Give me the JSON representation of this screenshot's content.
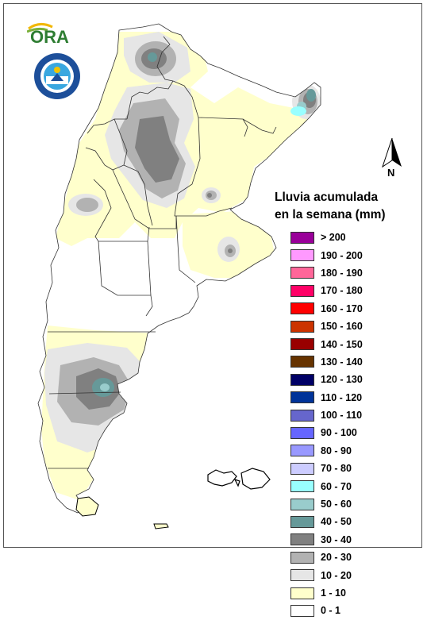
{
  "legend": {
    "title_line1": "Lluvia acumulada",
    "title_line2": "en la semana (mm)",
    "items": [
      {
        "label": "> 200",
        "color": "#990099"
      },
      {
        "label": "190 - 200",
        "color": "#ff99ff"
      },
      {
        "label": "180 - 190",
        "color": "#ff6699"
      },
      {
        "label": "170 - 180",
        "color": "#ff0066"
      },
      {
        "label": "160 - 170",
        "color": "#ff0000"
      },
      {
        "label": "150 - 160",
        "color": "#cc3300"
      },
      {
        "label": "140 - 150",
        "color": "#990000"
      },
      {
        "label": "130 - 140",
        "color": "#663300"
      },
      {
        "label": "120 - 130",
        "color": "#000066"
      },
      {
        "label": "110 - 120",
        "color": "#003399"
      },
      {
        "label": "100 - 110",
        "color": "#6666cc"
      },
      {
        "label": "90 - 100",
        "color": "#6666ff"
      },
      {
        "label": "80 - 90",
        "color": "#9999ff"
      },
      {
        "label": "70 - 80",
        "color": "#ccccff"
      },
      {
        "label": "60 - 70",
        "color": "#99ffff"
      },
      {
        "label": "50 - 60",
        "color": "#99cccc"
      },
      {
        "label": "40 - 50",
        "color": "#669999"
      },
      {
        "label": "30 - 40",
        "color": "#808080"
      },
      {
        "label": "20 - 30",
        "color": "#b2b2b2"
      },
      {
        "label": "10 - 20",
        "color": "#e6e6e6"
      },
      {
        "label": "1 - 10",
        "color": "#ffffcc"
      },
      {
        "label": "0 - 1",
        "color": "#ffffff"
      }
    ]
  },
  "north_arrow": {
    "label": "N"
  },
  "logos": {
    "ora": "ORA",
    "seal": "SERVICIO METEOROLOGICO NACIONAL · ARGENTINA"
  },
  "colors": {
    "land_base": "#ffffff",
    "border": "#333333",
    "c1_10": "#ffffcc",
    "c10_20": "#e6e6e6",
    "c20_30": "#b2b2b2",
    "c30_40": "#808080",
    "c40_50": "#669999",
    "c50_60": "#99cccc",
    "c60_70": "#99ffff"
  }
}
